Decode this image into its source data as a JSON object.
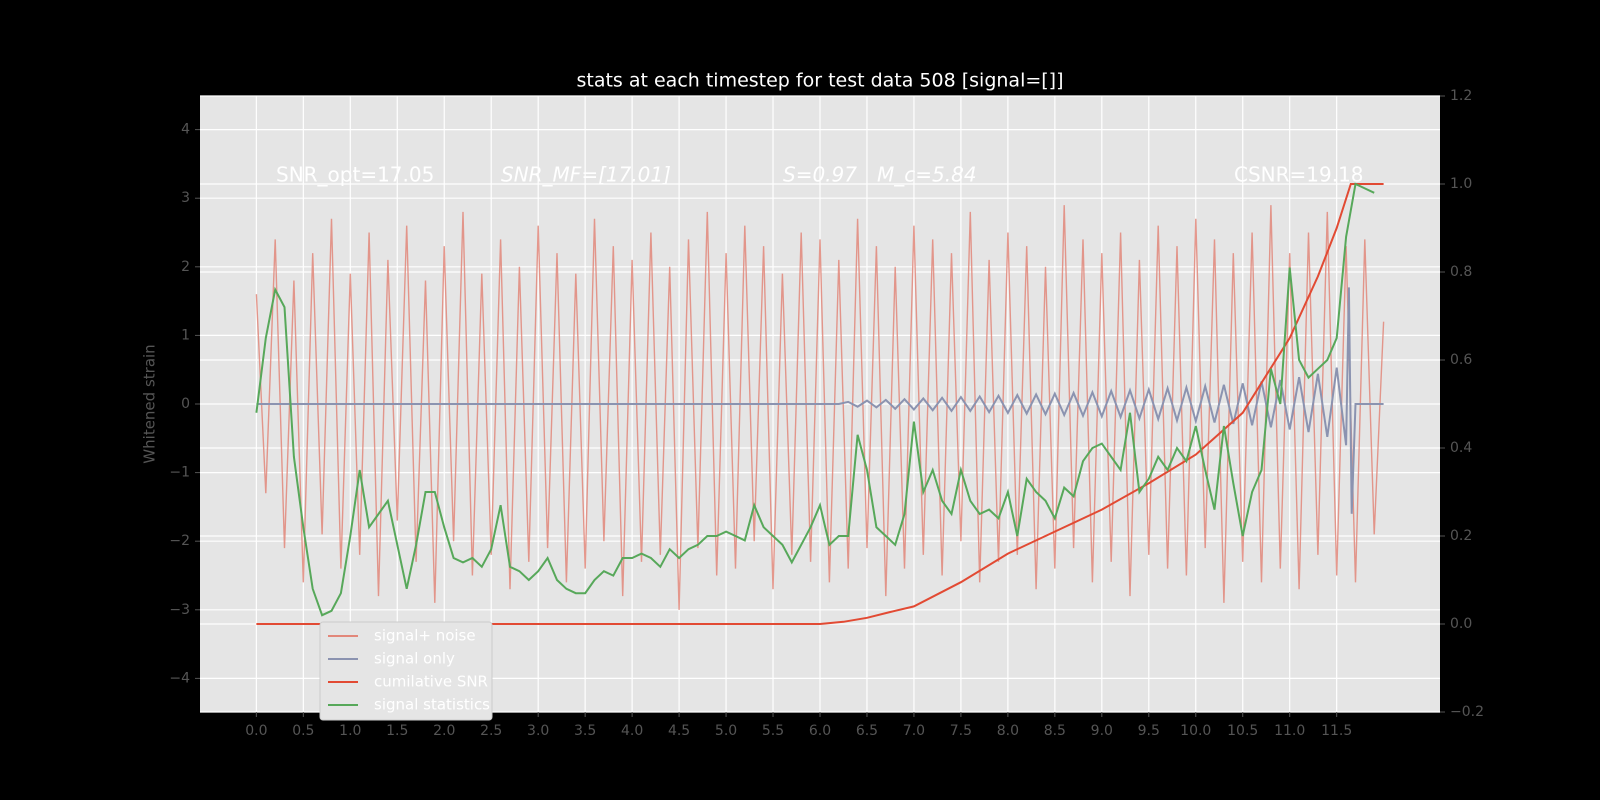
{
  "chart_data": {
    "type": "line",
    "title": "stats at each timestep for test data 508 [signal=[]]",
    "ylabel": "Whitened strain",
    "annotations": [
      "SNR_opt=17.05",
      "SNR_MF=[17.01]",
      "S=0.97",
      "M_c=5.84",
      "CSNR=19.18"
    ],
    "xlim": [
      -0.6,
      12.6
    ],
    "ylim": [
      -4.49,
      4.49
    ],
    "y2lim": [
      -0.2,
      1.2
    ],
    "xticks": [
      {
        "value": 0,
        "label": "0.0"
      },
      0.5,
      {
        "value": 1,
        "label": "1.0"
      },
      1.5,
      {
        "value": 2,
        "label": "2.0"
      },
      2.5,
      {
        "value": 3,
        "label": "3.0"
      },
      3.5,
      {
        "value": 4,
        "label": "4.0"
      },
      4.5,
      {
        "value": 5,
        "label": "5.0"
      },
      5.5,
      {
        "value": 6,
        "label": "6.0"
      },
      6.5,
      {
        "value": 7,
        "label": "7.0"
      },
      7.5,
      {
        "value": 8,
        "label": "8.0"
      },
      8.5,
      {
        "value": 9,
        "label": "9.0"
      },
      9.5,
      {
        "value": 10,
        "label": "10.0"
      },
      10.5,
      {
        "value": 11,
        "label": "11.0"
      },
      11.5
    ],
    "yticks": [
      {
        "value": -4,
        "label": "−4"
      },
      {
        "value": -3,
        "label": "−3"
      },
      {
        "value": -2,
        "label": "−2"
      },
      {
        "value": -1,
        "label": "−1"
      },
      0,
      1,
      2,
      3,
      4
    ],
    "y2ticks": [
      {
        "value": -0.2,
        "label": "−0.2"
      },
      {
        "value": 0,
        "label": "0.0"
      },
      0.2,
      0.4,
      0.6,
      0.8,
      {
        "value": 1,
        "label": "1.0"
      },
      1.2
    ],
    "grid": true,
    "legend": "lower left",
    "x": [
      0,
      0.1,
      0.2,
      0.3,
      0.4,
      0.5,
      0.6,
      0.7,
      0.8,
      0.9,
      1,
      1.1,
      1.2,
      1.3,
      1.4,
      1.5,
      1.6,
      1.7,
      1.8,
      1.9,
      2,
      2.1,
      2.2,
      2.3,
      2.4,
      2.5,
      2.6,
      2.7,
      2.8,
      2.9,
      3,
      3.1,
      3.2,
      3.3,
      3.4,
      3.5,
      3.6,
      3.7,
      3.8,
      3.9,
      4,
      4.1,
      4.2,
      4.3,
      4.4,
      4.5,
      4.6,
      4.7,
      4.8,
      4.9,
      5,
      5.1,
      5.2,
      5.3,
      5.4,
      5.5,
      5.6,
      5.7,
      5.8,
      5.9,
      6,
      6.1,
      6.2,
      6.3,
      6.4,
      6.5,
      6.6,
      6.7,
      6.8,
      6.9,
      7,
      7.1,
      7.2,
      7.3,
      7.4,
      7.5,
      7.6,
      7.7,
      7.8,
      7.9,
      8,
      8.1,
      8.2,
      8.3,
      8.4,
      8.5,
      8.6,
      8.7,
      8.8,
      8.9,
      9,
      9.1,
      9.2,
      9.3,
      9.4,
      9.5,
      9.6,
      9.7,
      9.8,
      9.9,
      10,
      10.1,
      10.2,
      10.3,
      10.4,
      10.5,
      10.6,
      10.7,
      10.8,
      10.9,
      11,
      11.1,
      11.2,
      11.3,
      11.4,
      11.5,
      11.6,
      11.7,
      11.8,
      11.9,
      12
    ],
    "series": [
      {
        "name": "signal+ noise",
        "color": "#e2877a",
        "values": [
          1.6,
          -1.3,
          2.4,
          -2.1,
          1.8,
          -2.6,
          2.2,
          -1.9,
          2.7,
          -2.4,
          1.9,
          -2.2,
          2.5,
          -2.8,
          2.1,
          -1.7,
          2.6,
          -2.3,
          1.8,
          -2.9,
          2.3,
          -2.0,
          2.8,
          -2.5,
          1.9,
          -2.2,
          2.4,
          -2.7,
          2.0,
          -2.3,
          2.6,
          -2.1,
          2.2,
          -2.6,
          1.9,
          -2.4,
          2.7,
          -2.0,
          2.3,
          -2.8,
          2.1,
          -2.3,
          2.5,
          -2.2,
          2.0,
          -3.0,
          2.4,
          -2.1,
          2.8,
          -2.5,
          2.2,
          -2.4,
          2.6,
          -2.0,
          2.3,
          -2.7,
          1.9,
          -2.2,
          2.5,
          -2.3,
          2.4,
          -2.6,
          2.1,
          -2.4,
          2.7,
          -2.1,
          2.3,
          -2.8,
          2.0,
          -2.4,
          2.6,
          -2.2,
          2.4,
          -2.5,
          2.2,
          -2.0,
          2.8,
          -2.6,
          2.1,
          -2.3,
          2.5,
          -2.2,
          2.3,
          -2.7,
          2.0,
          -2.4,
          2.9,
          -2.1,
          2.4,
          -2.6,
          2.2,
          -2.3,
          2.5,
          -2.8,
          2.1,
          -2.2,
          2.6,
          -2.4,
          2.3,
          -2.5,
          2.7,
          -2.1,
          2.4,
          -2.9,
          2.2,
          -2.3,
          2.5,
          -2.6,
          2.9,
          -2.4,
          2.2,
          -2.7,
          2.5,
          -2.2,
          2.8,
          -2.5,
          2.3,
          -2.6,
          2.4,
          -1.9,
          1.2
        ]
      },
      {
        "name": "signal only",
        "color": "#8b93b0",
        "x": [
          0,
          6.0,
          6.1,
          6.2,
          6.3,
          6.4,
          6.5,
          6.6,
          6.7,
          6.8,
          6.9,
          7.0,
          7.1,
          7.2,
          7.3,
          7.4,
          7.5,
          7.6,
          7.7,
          7.8,
          7.9,
          8.0,
          8.1,
          8.2,
          8.3,
          8.4,
          8.5,
          8.6,
          8.7,
          8.8,
          8.9,
          9.0,
          9.1,
          9.2,
          9.3,
          9.4,
          9.5,
          9.6,
          9.7,
          9.8,
          9.9,
          10.0,
          10.1,
          10.2,
          10.3,
          10.4,
          10.5,
          10.6,
          10.7,
          10.8,
          10.9,
          11.0,
          11.1,
          11.2,
          11.3,
          11.4,
          11.5,
          11.6,
          11.63,
          11.66,
          11.7,
          12.0
        ],
        "values": [
          0,
          0,
          0,
          0,
          0.03,
          -0.04,
          0.05,
          -0.05,
          0.06,
          -0.07,
          0.07,
          -0.08,
          0.08,
          -0.09,
          0.09,
          -0.1,
          0.1,
          -0.1,
          0.11,
          -0.12,
          0.12,
          -0.13,
          0.13,
          -0.14,
          0.14,
          -0.15,
          0.15,
          -0.16,
          0.16,
          -0.17,
          0.17,
          -0.18,
          0.19,
          -0.19,
          0.2,
          -0.21,
          0.21,
          -0.22,
          0.23,
          -0.24,
          0.24,
          -0.25,
          0.26,
          -0.27,
          0.28,
          -0.29,
          0.3,
          -0.31,
          0.33,
          -0.34,
          0.35,
          -0.37,
          0.39,
          -0.41,
          0.44,
          -0.48,
          0.53,
          -0.6,
          1.7,
          -1.6,
          0,
          0
        ]
      },
      {
        "name": "cumilative SNR",
        "color": "#e24a33",
        "axis": "y2",
        "x": [
          0,
          6.0,
          6.25,
          6.5,
          6.8,
          7.0,
          7.5,
          8.0,
          8.5,
          9.0,
          9.5,
          10.0,
          10.5,
          11.0,
          11.3,
          11.5,
          11.65,
          12.0
        ],
        "values": [
          0,
          0,
          0.005,
          0.014,
          0.03,
          0.04,
          0.095,
          0.16,
          0.21,
          0.26,
          0.32,
          0.385,
          0.48,
          0.65,
          0.79,
          0.9,
          1.0,
          1.0
        ]
      },
      {
        "name": "signal statistics",
        "color": "#57a85a",
        "axis": "y2",
        "values": [
          0.48,
          0.65,
          0.76,
          0.72,
          0.38,
          0.22,
          0.08,
          0.02,
          0.03,
          0.07,
          0.2,
          0.35,
          0.22,
          0.25,
          0.28,
          0.18,
          0.08,
          0.18,
          0.3,
          0.3,
          0.22,
          0.15,
          0.14,
          0.15,
          0.13,
          0.17,
          0.27,
          0.13,
          0.12,
          0.1,
          0.12,
          0.15,
          0.1,
          0.08,
          0.07,
          0.07,
          0.1,
          0.12,
          0.11,
          0.15,
          0.15,
          0.16,
          0.15,
          0.13,
          0.17,
          0.15,
          0.17,
          0.18,
          0.2,
          0.2,
          0.21,
          0.2,
          0.19,
          0.27,
          0.22,
          0.2,
          0.18,
          0.14,
          0.18,
          0.22,
          0.27,
          0.18,
          0.2,
          0.2,
          0.43,
          0.35,
          0.22,
          0.2,
          0.18,
          0.25,
          0.46,
          0.3,
          0.35,
          0.28,
          0.25,
          0.35,
          0.28,
          0.25,
          0.26,
          0.24,
          0.3,
          0.2,
          0.33,
          0.3,
          0.28,
          0.24,
          0.31,
          0.29,
          0.37,
          0.4,
          0.41,
          0.38,
          0.35,
          0.48,
          0.3,
          0.33,
          0.38,
          0.35,
          0.4,
          0.37,
          0.45,
          0.35,
          0.26,
          0.45,
          0.32,
          0.2,
          0.3,
          0.35,
          0.58,
          0.5,
          0.81,
          0.6,
          0.56,
          0.58,
          0.6,
          0.65,
          0.88,
          1.0,
          0.99,
          0.98,
          null
        ]
      }
    ]
  }
}
